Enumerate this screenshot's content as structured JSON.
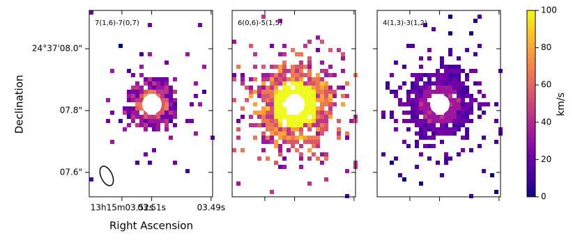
{
  "chart_data": {
    "type": "image",
    "xlabel": "Right Ascension",
    "ylabel": "Declination",
    "panels": [
      {
        "title": "7(1,6)-7(0,7)"
      },
      {
        "title": "6(0,6)-5(1,5)"
      },
      {
        "title": "4(1,3)-3(1,2)"
      }
    ],
    "xlim": [
      3.531,
      3.4895
    ],
    "xticks": [
      {
        "value": 3.52,
        "label": "13h15m03.52s"
      },
      {
        "value": 3.51,
        "label": "03.51s"
      },
      {
        "value": 3.49,
        "label": "03.49s"
      }
    ],
    "ylim": [
      7.521,
      8.124
    ],
    "yticks": [
      {
        "value": 8.0,
        "label": "24°37'08.0\""
      },
      {
        "value": 7.8,
        "label": "07.8\""
      },
      {
        "value": 7.6,
        "label": "07.6\""
      }
    ],
    "colorbar": {
      "label": "km/s",
      "lim": [
        0,
        100
      ],
      "ticks": [
        0,
        20,
        40,
        60,
        80,
        100
      ],
      "colormap": "plasma"
    }
  }
}
